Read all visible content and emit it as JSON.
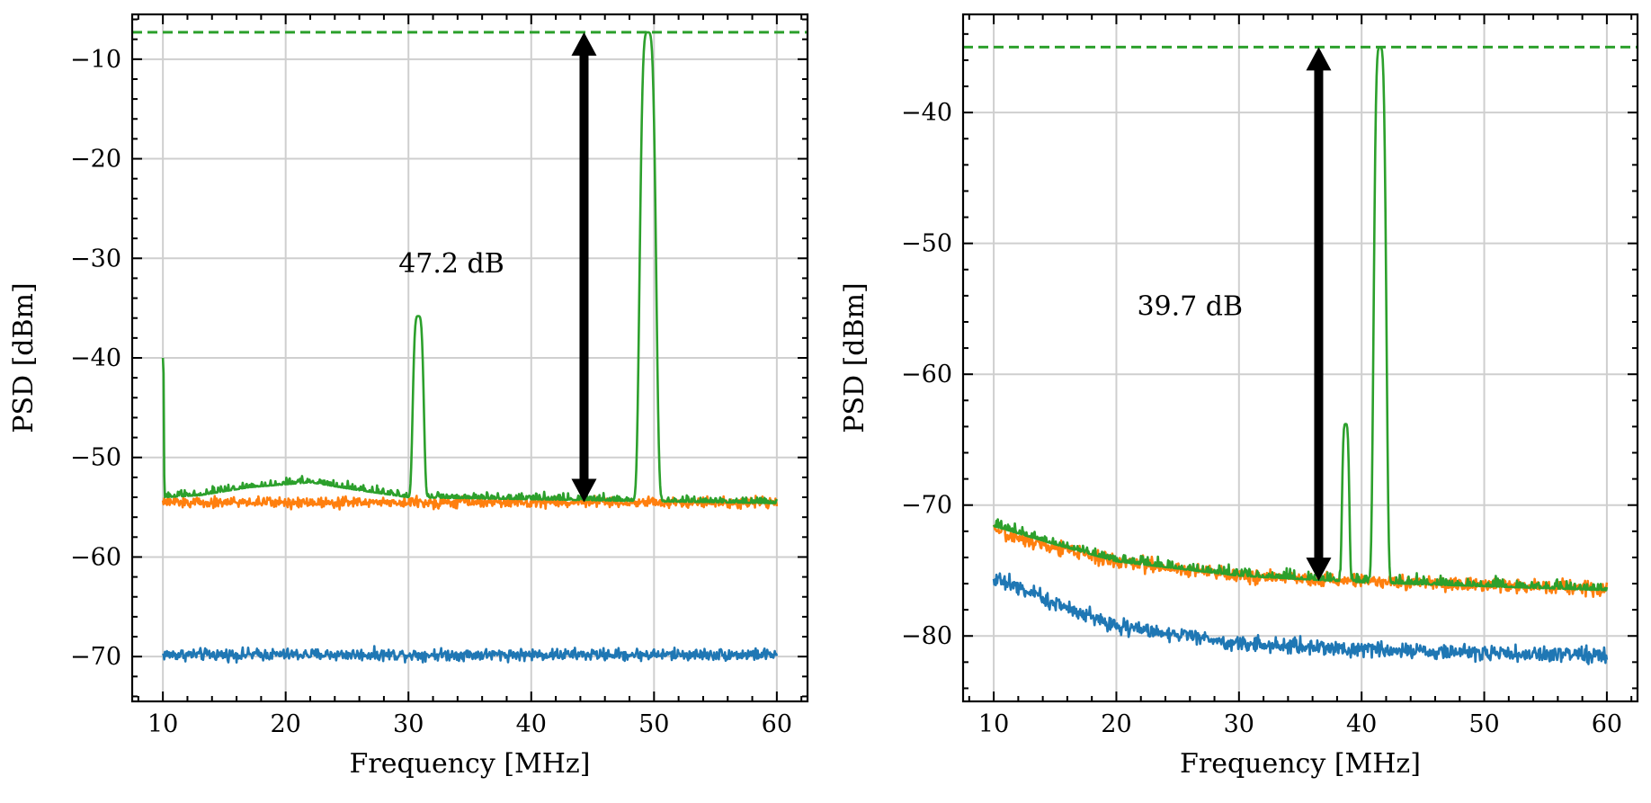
{
  "colors": {
    "blue": "#1f77b4",
    "orange": "#ff7f0e",
    "green": "#2ca02c",
    "grid": "#cfcfcf",
    "arrow": "#000000"
  },
  "chart_data": [
    {
      "type": "line",
      "title": "",
      "xlabel": "Frequency [MHz]",
      "ylabel": "PSD [dBm]",
      "xlim": [
        7.5,
        62.5
      ],
      "ylim": [
        -74.5,
        -5.5
      ],
      "xticks": [
        10,
        20,
        30,
        40,
        50,
        60
      ],
      "yticks": [
        -70,
        -60,
        -50,
        -40,
        -30,
        -20,
        -10
      ],
      "ytick_labels": [
        "−70",
        "−60",
        "−50",
        "−40",
        "−30",
        "−20",
        "−10"
      ],
      "grid": true,
      "reference_line": {
        "y": -7.3,
        "color": "green",
        "style": "dashed"
      },
      "arrow": {
        "x": 44.3,
        "y_top": -7.3,
        "y_bottom": -54.5
      },
      "annotation": {
        "text": "47.2 dB",
        "x": 33.5,
        "y": -30.5
      },
      "series": [
        {
          "name": "blue",
          "color": "blue",
          "baseline": [
            [
              10,
              -69.8
            ],
            [
              60,
              -69.8
            ]
          ],
          "noise": 0.45,
          "peaks": []
        },
        {
          "name": "orange",
          "color": "orange",
          "baseline": [
            [
              10,
              -54.5
            ],
            [
              60,
              -54.5
            ]
          ],
          "noise": 0.4,
          "peaks": []
        },
        {
          "name": "green",
          "color": "green",
          "baseline": [
            [
              10,
              -54.0
            ],
            [
              13,
              -53.8
            ],
            [
              17,
              -53.0
            ],
            [
              22,
              -52.5
            ],
            [
              26,
              -53.3
            ],
            [
              30,
              -54.0
            ],
            [
              60,
              -54.6
            ]
          ],
          "noise": 0.45,
          "peaks": [
            {
              "x": 10.0,
              "y": -40.0,
              "width": 0.08
            },
            {
              "x": 30.8,
              "y": -35.8,
              "width": 0.42
            },
            {
              "x": 49.5,
              "y": -7.3,
              "width": 0.62
            }
          ]
        }
      ]
    },
    {
      "type": "line",
      "title": "",
      "xlabel": "Frequency [MHz]",
      "ylabel": "PSD [dBm]",
      "xlim": [
        7.5,
        62.5
      ],
      "ylim": [
        -85,
        -32.5
      ],
      "xticks": [
        10,
        20,
        30,
        40,
        50,
        60
      ],
      "yticks": [
        -80,
        -70,
        -60,
        -50,
        -40
      ],
      "ytick_labels": [
        "−80",
        "−70",
        "−60",
        "−50",
        "−40"
      ],
      "grid": true,
      "reference_line": {
        "y": -35.0,
        "color": "green",
        "style": "dashed"
      },
      "arrow": {
        "x": 36.5,
        "y_top": -35.0,
        "y_bottom": -75.8
      },
      "annotation": {
        "text": "39.7 dB",
        "x": 26.0,
        "y": -54.8
      },
      "series": [
        {
          "name": "blue",
          "color": "blue",
          "baseline": [
            [
              10,
              -75.5
            ],
            [
              15,
              -77.5
            ],
            [
              20,
              -79.2
            ],
            [
              30,
              -80.6
            ],
            [
              40,
              -81.0
            ],
            [
              50,
              -81.3
            ],
            [
              60,
              -81.5
            ]
          ],
          "noise": 0.45,
          "peaks": []
        },
        {
          "name": "orange",
          "color": "orange",
          "baseline": [
            [
              10,
              -72.0
            ],
            [
              15,
              -73.2
            ],
            [
              20,
              -74.3
            ],
            [
              30,
              -75.4
            ],
            [
              40,
              -75.8
            ],
            [
              50,
              -76.1
            ],
            [
              60,
              -76.4
            ]
          ],
          "noise": 0.4,
          "peaks": []
        },
        {
          "name": "green",
          "color": "green",
          "baseline": [
            [
              10,
              -71.6
            ],
            [
              15,
              -73.0
            ],
            [
              20,
              -74.3
            ],
            [
              30,
              -75.4
            ],
            [
              40,
              -75.9
            ],
            [
              50,
              -76.2
            ],
            [
              60,
              -76.5
            ]
          ],
          "noise": 0.45,
          "peaks": [
            {
              "x": 38.7,
              "y": -63.8,
              "width": 0.28
            },
            {
              "x": 41.5,
              "y": -35.0,
              "width": 0.48
            }
          ]
        }
      ]
    }
  ]
}
